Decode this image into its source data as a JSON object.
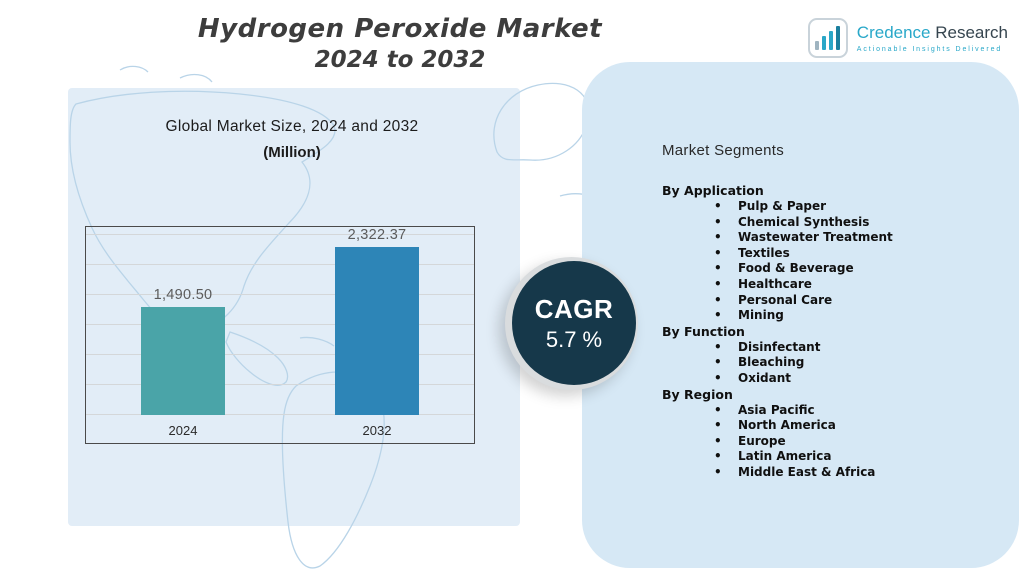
{
  "header": {
    "title_line1": "Hydrogen Peroxide Market",
    "title_line2": "2024 to 2032"
  },
  "logo": {
    "brand_primary": "Credence",
    "brand_secondary": " Research",
    "tagline": "Actionable Insights Delivered"
  },
  "chart_header": {
    "subtitle_line1": "Global Market Size, 2024 and 2032",
    "subtitle_line2": "(Million)"
  },
  "cagr": {
    "label": "CAGR",
    "value": "5.7 %"
  },
  "segments": {
    "title": "Market Segments",
    "groups": [
      {
        "label": "By Application",
        "items": [
          "Pulp & Paper",
          "Chemical Synthesis",
          "Wastewater Treatment",
          "Textiles",
          "Food & Beverage",
          "Healthcare",
          "Personal Care",
          "Mining"
        ]
      },
      {
        "label": "By Function",
        "items": [
          "Disinfectant",
          "Bleaching",
          "Oxidant"
        ]
      },
      {
        "label": "By Region",
        "items": [
          "Asia Pacific",
          "North America",
          "Europe",
          "Latin America",
          "Middle East & Africa"
        ]
      }
    ]
  },
  "chart_data": {
    "type": "bar",
    "title": "Global Market Size, 2024 and 2032 (Million)",
    "categories": [
      "2024",
      "2032"
    ],
    "values": [
      1490.5,
      2322.37
    ],
    "value_labels": [
      "1,490.50",
      "2,322.37"
    ],
    "series_colors": [
      "#4aa4a8",
      "#2d85b7"
    ],
    "xlabel": "",
    "ylabel": "",
    "ylim": [
      0,
      2500
    ],
    "grid": true,
    "legend": "none"
  },
  "colors": {
    "accent_teal": "#4aa4a8",
    "accent_blue": "#2d85b7",
    "cagr_circle": "#16384a",
    "left_panel_bg": "#e2edf7",
    "segments_panel_bg": "#d6e8f5",
    "brand_teal": "#29a8c9"
  }
}
